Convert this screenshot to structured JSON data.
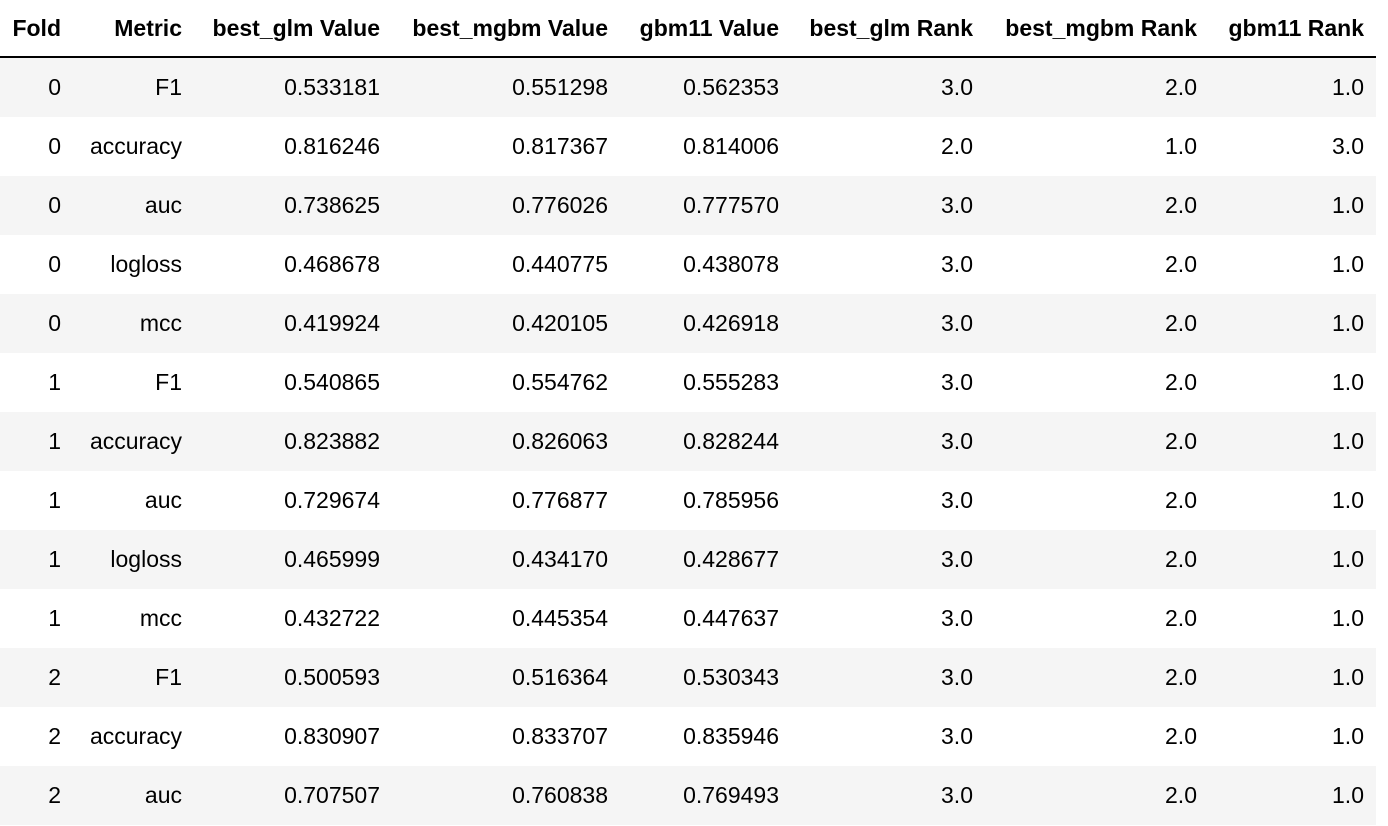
{
  "table": {
    "columns": [
      "Fold",
      "Metric",
      "best_glm Value",
      "best_mgbm Value",
      "gbm11 Value",
      "best_glm Rank",
      "best_mgbm Rank",
      "gbm11 Rank"
    ],
    "rows": [
      [
        "0",
        "F1",
        "0.533181",
        "0.551298",
        "0.562353",
        "3.0",
        "2.0",
        "1.0"
      ],
      [
        "0",
        "accuracy",
        "0.816246",
        "0.817367",
        "0.814006",
        "2.0",
        "1.0",
        "3.0"
      ],
      [
        "0",
        "auc",
        "0.738625",
        "0.776026",
        "0.777570",
        "3.0",
        "2.0",
        "1.0"
      ],
      [
        "0",
        "logloss",
        "0.468678",
        "0.440775",
        "0.438078",
        "3.0",
        "2.0",
        "1.0"
      ],
      [
        "0",
        "mcc",
        "0.419924",
        "0.420105",
        "0.426918",
        "3.0",
        "2.0",
        "1.0"
      ],
      [
        "1",
        "F1",
        "0.540865",
        "0.554762",
        "0.555283",
        "3.0",
        "2.0",
        "1.0"
      ],
      [
        "1",
        "accuracy",
        "0.823882",
        "0.826063",
        "0.828244",
        "3.0",
        "2.0",
        "1.0"
      ],
      [
        "1",
        "auc",
        "0.729674",
        "0.776877",
        "0.785956",
        "3.0",
        "2.0",
        "1.0"
      ],
      [
        "1",
        "logloss",
        "0.465999",
        "0.434170",
        "0.428677",
        "3.0",
        "2.0",
        "1.0"
      ],
      [
        "1",
        "mcc",
        "0.432722",
        "0.445354",
        "0.447637",
        "3.0",
        "2.0",
        "1.0"
      ],
      [
        "2",
        "F1",
        "0.500593",
        "0.516364",
        "0.530343",
        "3.0",
        "2.0",
        "1.0"
      ],
      [
        "2",
        "accuracy",
        "0.830907",
        "0.833707",
        "0.835946",
        "3.0",
        "2.0",
        "1.0"
      ],
      [
        "2",
        "auc",
        "0.707507",
        "0.760838",
        "0.769493",
        "3.0",
        "2.0",
        "1.0"
      ]
    ]
  }
}
